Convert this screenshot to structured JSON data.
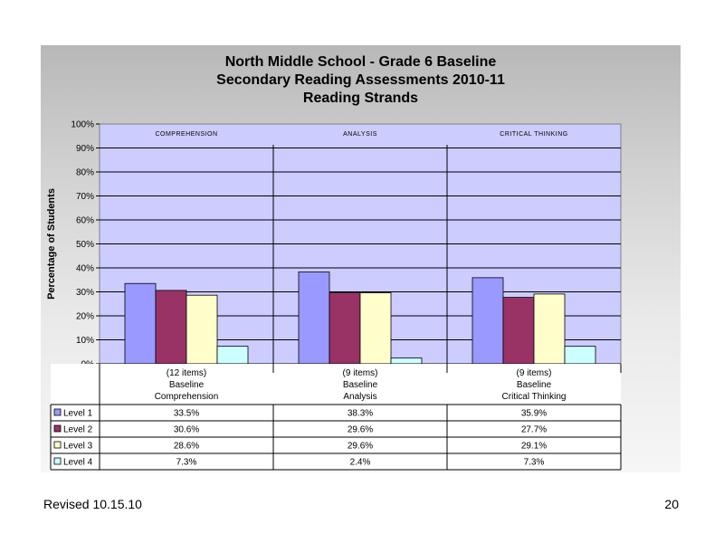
{
  "chart_data": {
    "type": "bar",
    "title_lines": [
      "North Middle School - Grade 6 Baseline",
      "Secondary Reading Assessments 2010-11",
      "Reading Strands"
    ],
    "ylabel": "Percentage of Students",
    "ylim": [
      0,
      100
    ],
    "yticks": [
      "0%",
      "10%",
      "20%",
      "30%",
      "40%",
      "50%",
      "60%",
      "70%",
      "80%",
      "90%",
      "100%"
    ],
    "strand_headers": [
      "COMPREHENSION",
      "ANALYSIS",
      "CRITICAL THINKING"
    ],
    "categories": [
      {
        "line1": "(12 items)",
        "line2": "Baseline",
        "line3": "Comprehension"
      },
      {
        "line1": "(9 items)",
        "line2": "Baseline",
        "line3": "Analysis"
      },
      {
        "line1": "(9 items)",
        "line2": "Baseline",
        "line3": "Critical Thinking"
      }
    ],
    "series": [
      {
        "name": "Level 1",
        "color": "#9999ff",
        "values": [
          33.5,
          38.3,
          35.9
        ],
        "labels": [
          "33.5%",
          "38.3%",
          "35.9%"
        ]
      },
      {
        "name": "Level 2",
        "color": "#993366",
        "values": [
          30.6,
          29.6,
          27.7
        ],
        "labels": [
          "30.6%",
          "29.6%",
          "27.7%"
        ]
      },
      {
        "name": "Level 3",
        "color": "#ffffcc",
        "values": [
          28.6,
          29.6,
          29.1
        ],
        "labels": [
          "28.6%",
          "29.6%",
          "29.1%"
        ]
      },
      {
        "name": "Level 4",
        "color": "#ccffff",
        "values": [
          7.3,
          2.4,
          7.3
        ],
        "labels": [
          "7.3%",
          "2.4%",
          "7.3%"
        ]
      }
    ],
    "legend": "data-table",
    "grid": true,
    "plot_background": "#ccccff"
  },
  "footer": {
    "revised": "Revised 10.15.10",
    "page_number": "20"
  }
}
